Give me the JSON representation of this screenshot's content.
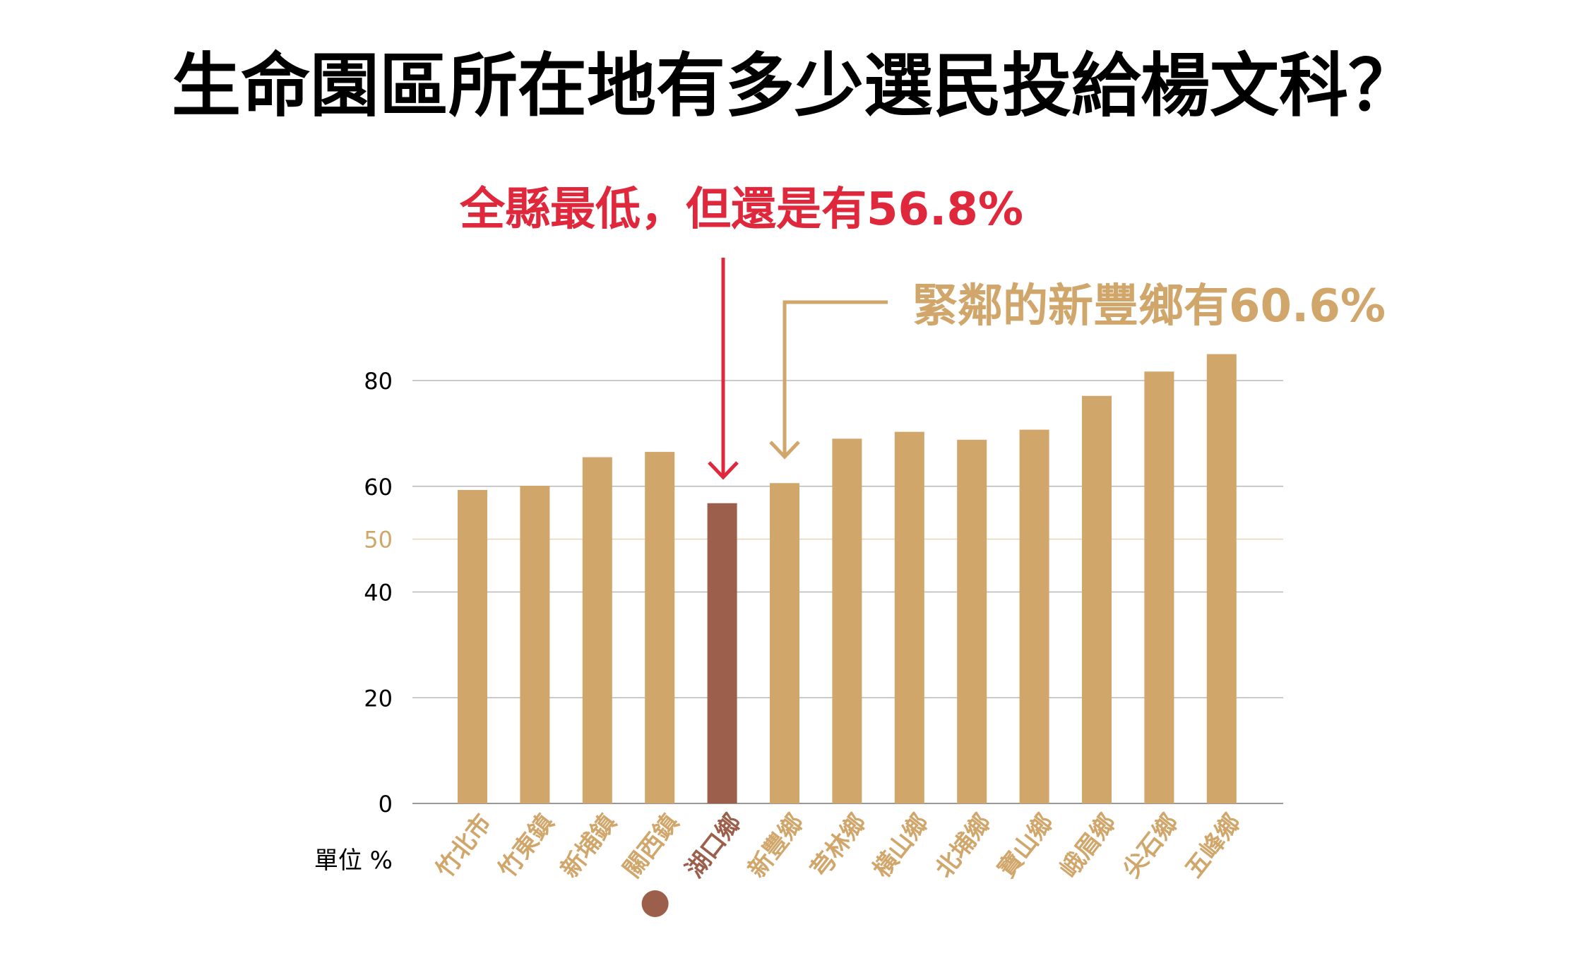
{
  "chart_data": {
    "type": "bar",
    "title": "生命園區所在地有多少選民投給楊文科？",
    "ylabel": "單位 %",
    "ylim": [
      0,
      85
    ],
    "yticks": [
      0,
      20,
      40,
      50,
      60,
      80
    ],
    "highlight_tick": 50,
    "grid": true,
    "categories": [
      "竹北市",
      "竹東鎮",
      "新埔鎮",
      "關西鎮",
      "湖口鄉",
      "新豐鄉",
      "芎林鄉",
      "橫山鄉",
      "北埔鄉",
      "寶山鄉",
      "峨眉鄉",
      "尖石鄉",
      "五峰鄉"
    ],
    "values": [
      59.3,
      60.1,
      65.5,
      66.5,
      56.8,
      60.6,
      69.0,
      70.3,
      68.8,
      70.7,
      77.1,
      81.7,
      85.0
    ],
    "highlight_index": 4,
    "annotations": [
      {
        "text": "全縣最低，但還是有56.8%",
        "target": "湖口鄉",
        "color": "#e0283c"
      },
      {
        "text": "緊鄰的新豐鄉有60.6%",
        "target": "新豐鄉",
        "color": "#d1a66b"
      }
    ],
    "colors": {
      "bar": "#d1a66b",
      "highlight": "#9b5f4b",
      "grid": "#b8b8b8",
      "grid50": "#e6d5b8",
      "tick50": "#d1a66b"
    }
  }
}
